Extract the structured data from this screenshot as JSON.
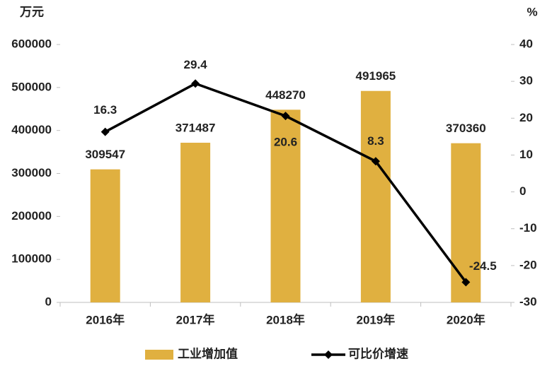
{
  "chart_data": {
    "type": "bar-line",
    "y_label": "万元",
    "y2_label": "%",
    "categories": [
      "2016年",
      "2017年",
      "2018年",
      "2019年",
      "2020年"
    ],
    "series": [
      {
        "name": "工业增加值",
        "type": "bar",
        "color": "#e0b040",
        "values": [
          309547,
          371487,
          448270,
          491965,
          370360
        ]
      },
      {
        "name": "可比价增速",
        "type": "line",
        "color": "#000000",
        "axis": "y2",
        "values": [
          16.3,
          29.4,
          20.6,
          8.3,
          -24.5
        ]
      }
    ],
    "ylim": [
      0,
      600000
    ],
    "yticks": [
      0,
      100000,
      200000,
      300000,
      400000,
      500000,
      600000
    ],
    "y2lim": [
      -30,
      40
    ],
    "y2ticks": [
      -30,
      -20,
      -10,
      0,
      10,
      20,
      30,
      40
    ],
    "grid": false,
    "legend": "bottom"
  }
}
